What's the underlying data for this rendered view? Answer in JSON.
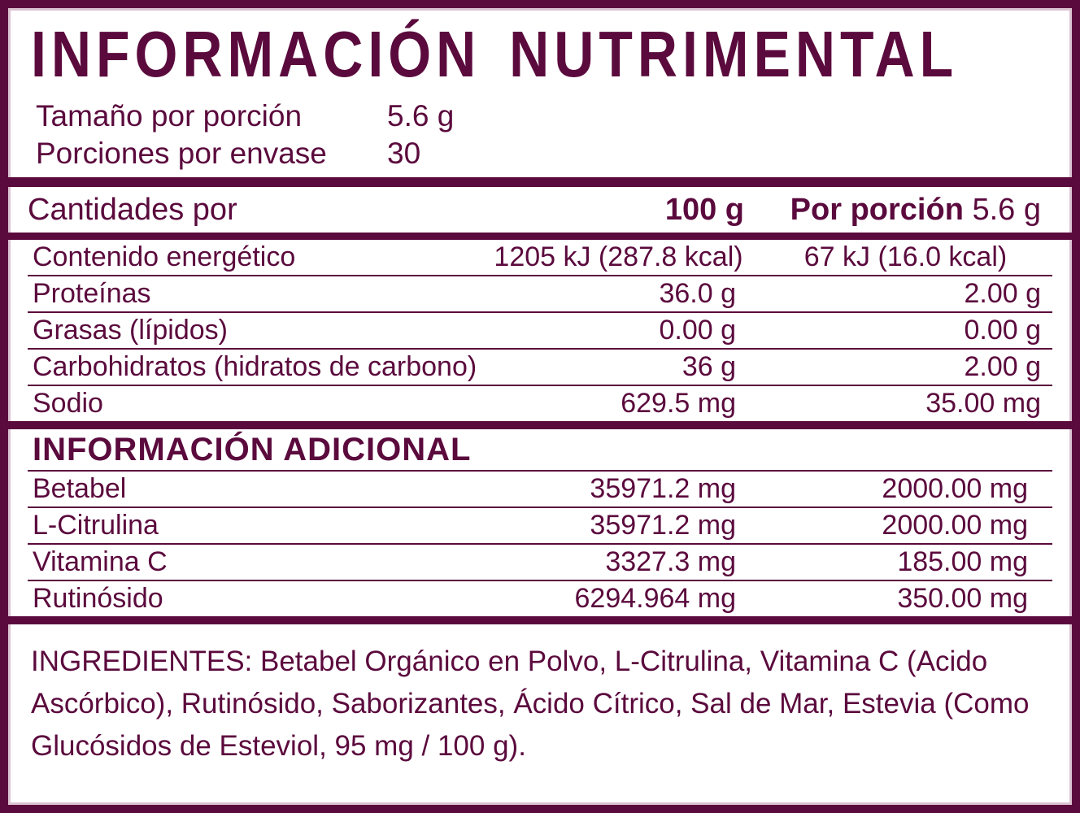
{
  "colors": {
    "plum": "#5b0a3d",
    "hairline": "#dcc2d1",
    "paper": "#ffffff"
  },
  "header": {
    "title": "INFORMACIÓN NUTRIMENTAL",
    "serving_rows": [
      {
        "label": "Tamaño por porción",
        "value": "5.6 g"
      },
      {
        "label": "Porciones por envase",
        "value": "30"
      }
    ]
  },
  "amounts_table": {
    "col_label": "Cantidades por",
    "col_100g": "100 g",
    "col_portion_label": "Por porción",
    "col_portion_value": "5.6 g",
    "rows": [
      {
        "label": "Contenido energético",
        "per100": "1205 kJ (287.8 kcal)",
        "portion": "67 kJ (16.0 kcal)"
      },
      {
        "label": "Proteínas",
        "per100": "36.0 g",
        "portion": "2.00 g"
      },
      {
        "label": "Grasas (lípidos)",
        "per100": "0.00 g",
        "portion": "0.00 g"
      },
      {
        "label": "Carbohidratos (hidratos de carbono)",
        "per100": "36 g",
        "portion": "2.00 g"
      },
      {
        "label": "Sodio",
        "per100": "629.5 mg",
        "portion": "35.00 mg"
      }
    ]
  },
  "additional_table": {
    "title": "INFORMACIÓN ADICIONAL",
    "rows": [
      {
        "label": "Betabel",
        "per100": "35971.2 mg",
        "portion": "2000.00 mg"
      },
      {
        "label": "L-Citrulina",
        "per100": "35971.2 mg",
        "portion": "2000.00 mg"
      },
      {
        "label": "Vitamina C",
        "per100": "3327.3 mg",
        "portion": "185.00 mg"
      },
      {
        "label": "Rutinósido",
        "per100": "6294.964 mg",
        "portion": "350.00 mg"
      }
    ]
  },
  "ingredients": {
    "text": "INGREDIENTES: Betabel Orgánico en Polvo, L-Citrulina, Vitamina C (Acido Ascórbico), Rutinósido, Saborizantes, Ácido Cítrico, Sal de Mar, Estevia (Como Glucósidos de Esteviol, 95 mg / 100 g)."
  }
}
